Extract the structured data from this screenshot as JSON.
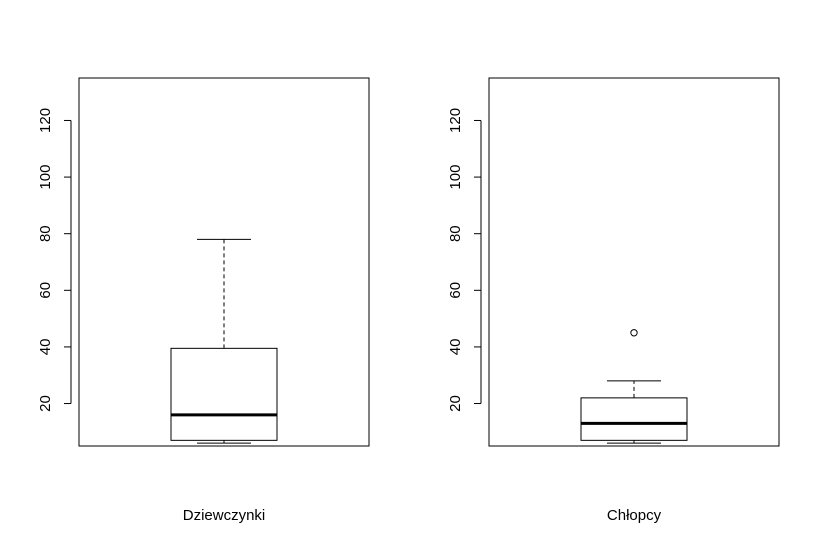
{
  "chart_data": [
    {
      "type": "boxplot",
      "xlabel": "Dziewczynki",
      "ylabel": "",
      "ylim": [
        5,
        135
      ],
      "yticks": [
        20,
        40,
        60,
        80,
        100,
        120
      ],
      "ytick_labels": [
        "20",
        "40",
        "60",
        "80",
        "100",
        "120"
      ],
      "box": {
        "min": 6,
        "q1": 7,
        "median": 16,
        "q3": 39.5,
        "max": 78
      },
      "outliers": []
    },
    {
      "type": "boxplot",
      "xlabel": "Chłopcy",
      "ylabel": "",
      "ylim": [
        5,
        135
      ],
      "yticks": [
        20,
        40,
        60,
        80,
        100,
        120
      ],
      "ytick_labels": [
        "20",
        "40",
        "60",
        "80",
        "100",
        "120"
      ],
      "box": {
        "min": 6,
        "q1": 7,
        "median": 13,
        "q3": 22,
        "max": 28
      },
      "outliers": [
        45
      ]
    }
  ]
}
